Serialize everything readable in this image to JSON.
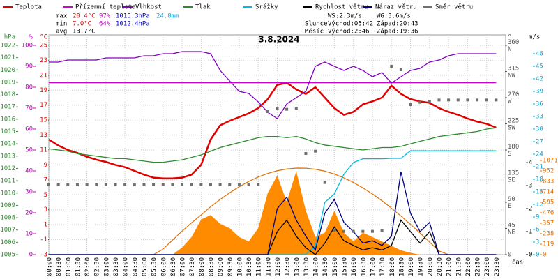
{
  "chart_data": {
    "type": "line",
    "title": "3.8.2024",
    "x_label": "čas",
    "categories": [
      "00:00",
      "00:30",
      "01:00",
      "01:30",
      "02:00",
      "02:30",
      "03:00",
      "03:30",
      "04:00",
      "04:30",
      "05:00",
      "05:30",
      "06:00",
      "06:30",
      "07:00",
      "07:30",
      "08:00",
      "08:30",
      "09:00",
      "09:30",
      "10:00",
      "10:30",
      "11:00",
      "11:30",
      "12:00",
      "12:30",
      "13:00",
      "13:30",
      "14:00",
      "14:30",
      "15:00",
      "15:30",
      "16:00",
      "16:30",
      "17:00",
      "17:30",
      "18:00",
      "18:30",
      "19:00",
      "19:30",
      "20:00",
      "20:30",
      "21:00",
      "21:30",
      "22:00",
      "22:30",
      "23:00",
      "23:30"
    ],
    "grid": true,
    "axes": [
      {
        "unit": "hPa",
        "color": "#2e8b2e",
        "ylim": [
          1005,
          1022
        ],
        "yticks": [
          1005,
          1006,
          1007,
          1008,
          1009,
          1010,
          1011,
          1012,
          1013,
          1014,
          1015,
          1016,
          1017,
          1018,
          1019,
          1020,
          1021,
          1022
        ]
      },
      {
        "unit": "%",
        "color": "#c000c0",
        "ylim": [
          0,
          100
        ],
        "yticks": [
          0,
          10,
          20,
          30,
          40,
          50,
          60,
          70,
          80,
          90,
          100
        ]
      },
      {
        "unit": "°C",
        "color": "#e00000",
        "ylim": [
          -3,
          25
        ],
        "yticks": [
          -3,
          -1,
          1,
          3,
          5,
          7,
          9,
          11,
          13,
          15,
          17,
          19,
          21,
          23,
          25
        ]
      },
      {
        "unit": "°",
        "color": "#555555",
        "ylim": [
          0,
          360
        ],
        "yticks": [
          0,
          {
            "value": 45,
            "label": "45 NE"
          },
          {
            "value": 90,
            "label": "90 E"
          },
          {
            "value": 135,
            "label": "135 SE"
          },
          {
            "value": 180,
            "label": "180 S"
          },
          {
            "value": 225,
            "label": "225 SW"
          },
          {
            "value": 270,
            "label": "270 W"
          },
          {
            "value": 315,
            "label": "315 NW"
          },
          {
            "value": 360,
            "label": "360 N"
          }
        ]
      },
      {
        "unit": "m/s",
        "color": "#000000",
        "ylim": [
          0,
          9.1
        ],
        "yticks": [
          0,
          1,
          2,
          3,
          4
        ]
      },
      {
        "color": "#00a8d8",
        "ylim": [
          0,
          50
        ],
        "yticks": [
          0,
          3,
          6,
          9,
          12,
          15,
          18,
          21,
          24,
          27,
          30,
          33,
          36,
          39,
          42,
          45,
          48
        ]
      },
      {
        "color": "#e07000",
        "ylim": [
          0,
          2380
        ],
        "yticks": [
          0,
          119,
          238,
          357,
          476,
          595,
          714,
          833,
          952,
          1071
        ]
      }
    ],
    "radiation": {
      "color": "#ff8c00",
      "axis": 6,
      "values": [
        0,
        0,
        0,
        0,
        0,
        0,
        0,
        0,
        0,
        0,
        0,
        0,
        0,
        0,
        80,
        200,
        400,
        450,
        350,
        300,
        200,
        150,
        300,
        700,
        900,
        600,
        950,
        500,
        200,
        250,
        500,
        250,
        150,
        250,
        200,
        150,
        100,
        50,
        20,
        0,
        0,
        0,
        0,
        0,
        0,
        0,
        0,
        0
      ]
    },
    "clear_sky": {
      "color": "#e07000",
      "axis": 6,
      "values": [
        0,
        0,
        0,
        0,
        0,
        0,
        0,
        0,
        0,
        0,
        0,
        0,
        62,
        165,
        267,
        362,
        451,
        545,
        628,
        703,
        771,
        832,
        883,
        923,
        954,
        974,
        984,
        983,
        971,
        949,
        916,
        873,
        821,
        759,
        690,
        613,
        528,
        439,
        344,
        245,
        144,
        41,
        0,
        0,
        0,
        0,
        0,
        0
      ]
    },
    "series": [
      {
        "name": "Teplota",
        "color": "#e00000",
        "axis": 2,
        "values": [
          12.4,
          11.6,
          11.0,
          10.6,
          10.1,
          9.7,
          9.4,
          9.0,
          8.7,
          8.2,
          7.7,
          7.3,
          7.2,
          7.2,
          7.3,
          7.7,
          9.0,
          12.4,
          14.3,
          14.9,
          15.4,
          15.9,
          16.6,
          17.8,
          19.7,
          20.0,
          19.1,
          18.5,
          19.4,
          18.0,
          16.6,
          15.7,
          16.1,
          17.1,
          17.5,
          18.0,
          19.6,
          18.5,
          17.8,
          17.5,
          17.3,
          16.6,
          16.1,
          15.7,
          15.2,
          14.8,
          14.5,
          14.0
        ]
      },
      {
        "name": "Přízemní teplota",
        "color": "#d000d0",
        "axis": 2,
        "values": [
          20.0,
          20.0,
          20.0,
          20.0,
          20.0,
          20.0,
          20.0,
          20.0,
          20.0,
          20.0,
          20.0,
          20.0,
          20.0,
          20.0,
          20.0,
          20.0,
          20.0,
          20.0,
          20.0,
          20.0,
          20.0,
          20.0,
          20.0,
          20.0,
          20.0,
          20.0,
          20.0,
          20.0,
          20.0,
          20.0,
          20.0,
          20.0,
          20.0,
          20.0,
          20.0,
          20.0,
          20.0,
          20.0,
          20.0,
          20.0,
          20.0,
          20.0,
          20.0,
          20.0,
          20.0,
          20.0,
          20.0,
          20.0
        ]
      },
      {
        "name": "Vlhkost",
        "color": "#8000c0",
        "axis": 1,
        "values": [
          92,
          92,
          93,
          93,
          93,
          93,
          94,
          94,
          94,
          94,
          95,
          95,
          96,
          96,
          97,
          97,
          97,
          96,
          88,
          83,
          78,
          77,
          73,
          68,
          65,
          72,
          75,
          78,
          90,
          92,
          90,
          88,
          90,
          88,
          85,
          87,
          82,
          85,
          88,
          89,
          92,
          93,
          95,
          96,
          96,
          96,
          96,
          96
        ]
      },
      {
        "name": "Tlak",
        "color": "#2e8b2e",
        "axis": 0,
        "values": [
          1013.6,
          1013.5,
          1013.4,
          1013.2,
          1013.1,
          1013.0,
          1012.9,
          1012.8,
          1012.8,
          1012.7,
          1012.6,
          1012.5,
          1012.5,
          1012.6,
          1012.7,
          1012.9,
          1013.1,
          1013.4,
          1013.7,
          1013.9,
          1014.1,
          1014.3,
          1014.5,
          1014.6,
          1014.6,
          1014.5,
          1014.6,
          1014.4,
          1014.1,
          1013.9,
          1013.8,
          1013.7,
          1013.6,
          1013.5,
          1013.6,
          1013.7,
          1013.7,
          1013.8,
          1014.0,
          1014.2,
          1014.4,
          1014.6,
          1014.7,
          1014.8,
          1014.9,
          1015.0,
          1015.2,
          1015.3
        ]
      },
      {
        "name": "Srážky",
        "color": "#00b8e0",
        "axis": 5,
        "values": [
          0,
          0,
          0,
          0,
          0,
          0,
          0,
          0,
          0,
          0,
          0,
          0,
          0,
          0,
          0,
          0,
          0,
          0,
          0,
          0,
          0,
          0,
          0,
          0,
          0,
          0,
          0,
          0,
          2,
          12.5,
          14.5,
          19.2,
          22.0,
          22.9,
          22.9,
          22.9,
          23.0,
          23.0,
          24.8,
          24.8,
          24.8,
          24.8,
          24.8,
          24.8,
          24.8,
          24.8,
          24.8,
          24.8
        ]
      },
      {
        "name": "Rychlost větru",
        "color": "#000000",
        "axis": 4,
        "values": [
          0,
          0,
          0,
          0,
          0,
          0,
          0,
          0,
          0,
          0,
          0,
          0,
          0,
          0,
          0,
          0,
          0,
          0,
          0,
          0,
          0,
          0,
          0,
          0,
          1.0,
          1.5,
          0.8,
          0.3,
          0,
          0.5,
          1.2,
          0.6,
          0.4,
          0.2,
          0.3,
          0.2,
          0.4,
          1.5,
          1.0,
          0.5,
          1.0,
          0,
          0,
          0,
          0,
          0,
          0,
          0
        ]
      },
      {
        "name": "Náraz větru",
        "color": "#000080",
        "axis": 4,
        "values": [
          0,
          0,
          0,
          0,
          0,
          0,
          0,
          0,
          0,
          0,
          0,
          0,
          0,
          0,
          0,
          0,
          0,
          0,
          0,
          0,
          0,
          0,
          0,
          0,
          2.0,
          2.5,
          1.5,
          0.8,
          0.2,
          1.8,
          2.4,
          1.4,
          1.0,
          0.5,
          0.6,
          0.4,
          0.8,
          3.6,
          1.8,
          1.0,
          1.4,
          0,
          0,
          0,
          0,
          0,
          0,
          0
        ]
      },
      {
        "name": "Směr větru",
        "color": "#707070",
        "axis": 3,
        "points": true,
        "values": [
          120,
          120,
          120,
          120,
          120,
          120,
          120,
          120,
          120,
          120,
          120,
          120,
          120,
          120,
          120,
          120,
          120,
          120,
          120,
          120,
          120,
          120,
          120,
          246,
          252,
          250,
          252,
          174,
          178,
          124,
          42,
          40,
          40,
          40,
          40,
          42,
          324,
          318,
          258,
          262,
          264,
          266,
          266,
          266,
          266,
          266,
          266,
          266
        ]
      }
    ],
    "stats": [
      [
        "max",
        "20.4°C",
        "97%",
        "1015.3hPa",
        "24.8mm"
      ],
      [
        "min",
        "7.0°C",
        "64%",
        "1012.4hPa"
      ],
      [
        "avg",
        "13.7°C"
      ]
    ],
    "info": [
      [
        "WS:2.3m/s",
        "WG:3.6m/s"
      ],
      [
        "Slunce",
        "Východ:05:42",
        "Západ:20:43"
      ],
      [
        "Měsíc",
        "Východ:2:46",
        "Západ:19:36"
      ]
    ]
  }
}
